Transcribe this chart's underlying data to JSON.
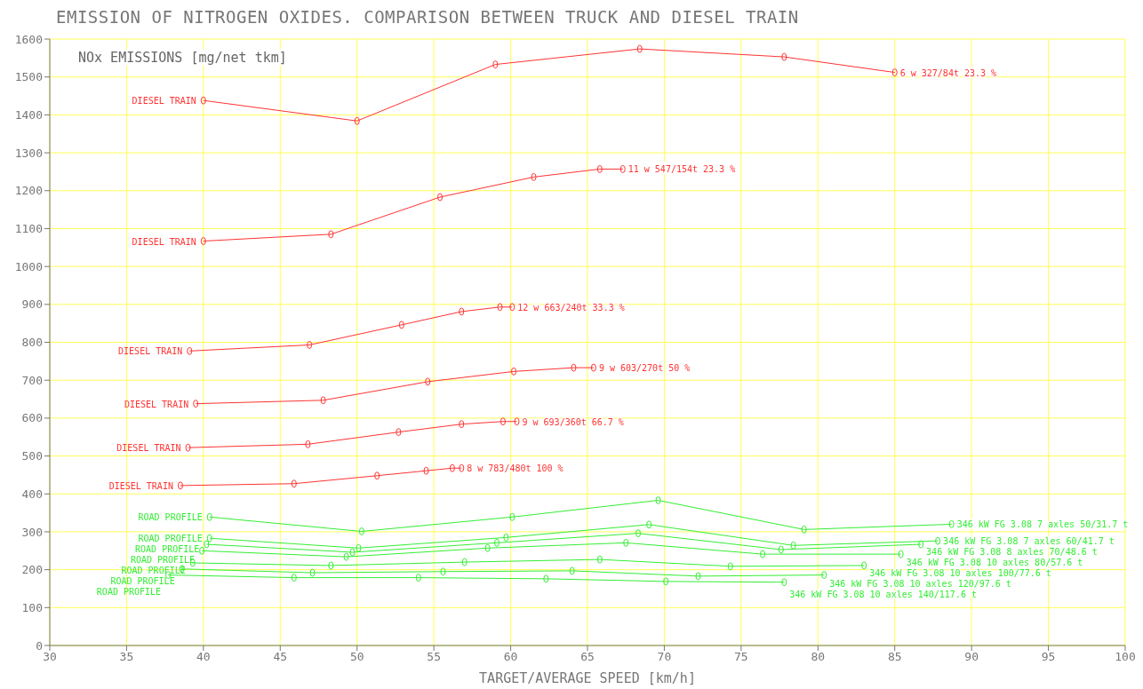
{
  "chart_data": {
    "type": "line",
    "title": "EMISSION OF NITROGEN OXIDES. COMPARISON BETWEEN TRUCK AND DIESEL TRAIN",
    "xlabel": "TARGET/AVERAGE SPEED [km/h]",
    "ylabel": "NOx EMISSIONS [mg/net tkm]",
    "xlim": [
      30,
      100
    ],
    "xticks": [
      30,
      35,
      40,
      45,
      50,
      55,
      60,
      65,
      70,
      75,
      80,
      85,
      90,
      95,
      100
    ],
    "ylim": [
      0,
      1600
    ],
    "yticks": [
      0,
      100,
      200,
      300,
      400,
      500,
      600,
      700,
      800,
      900,
      1000,
      1100,
      1200,
      1300,
      1400,
      1500,
      1600
    ],
    "grid": true,
    "marker": "circle",
    "line_style": "solid",
    "series": [
      {
        "name": "6 w 327/84t 23.3 %",
        "color": "#ff3333",
        "x": [
          40,
          50,
          59,
          68.4,
          77.8,
          85
        ],
        "values": [
          1438,
          1384,
          1533,
          1574,
          1553,
          1512
        ]
      },
      {
        "name": "11 w 547/154t 23.3 %",
        "color": "#ff3333",
        "x": [
          40,
          48.3,
          55.4,
          61.5,
          65.8,
          67.3
        ],
        "values": [
          1067,
          1085,
          1183,
          1236,
          1257,
          1257
        ]
      },
      {
        "name": "12 w 663/240t 33.3 %",
        "color": "#ff3333",
        "x": [
          39.1,
          46.9,
          52.9,
          56.8,
          59.3,
          60.1
        ],
        "values": [
          777,
          793,
          846,
          881,
          893,
          893
        ]
      },
      {
        "name": "9 w 603/270t 50 %",
        "color": "#ff3333",
        "x": [
          39.5,
          47.8,
          54.6,
          60.2,
          64.1,
          65.4
        ],
        "values": [
          638,
          647,
          696,
          723,
          733,
          733
        ]
      },
      {
        "name": "9 w 693/360t 66.7 %",
        "color": "#ff3333",
        "x": [
          39,
          46.8,
          52.7,
          56.8,
          59.5,
          60.4
        ],
        "values": [
          522,
          531,
          563,
          584,
          591,
          591
        ]
      },
      {
        "name": "8 w 783/480t 100 %",
        "color": "#ff3333",
        "x": [
          38.5,
          45.9,
          51.3,
          54.5,
          56.2,
          56.8
        ],
        "values": [
          422,
          427,
          448,
          461,
          468,
          468
        ]
      },
      {
        "name": "346 kW FG 3.08  7 axles 50/31.7 t",
        "color": "#33ee33",
        "x": [
          40.4,
          50.3,
          60.1,
          69.6,
          79.1,
          88.7
        ],
        "values": [
          339,
          301,
          339,
          383,
          306,
          320
        ]
      },
      {
        "name": "346 kW FG 3.08  7 axles 60/41.7 t",
        "color": "#33ee33",
        "x": [
          40.4,
          50.1,
          59.7,
          69,
          78.4,
          87.8
        ],
        "values": [
          283,
          257,
          285,
          319,
          264,
          276
        ]
      },
      {
        "name": "346 kW FG 3.08  8 axles 70/48.6 t",
        "color": "#33ee33",
        "x": [
          40.2,
          49.7,
          59.1,
          68.3,
          77.6,
          86.7
        ],
        "values": [
          267,
          246,
          271,
          296,
          253,
          267
        ]
      },
      {
        "name": "346 kW FG 3.08  10 axles 80/57.6 t",
        "color": "#33ee33",
        "x": [
          39.9,
          49.3,
          58.5,
          67.5,
          76.4,
          85.4
        ],
        "values": [
          250,
          234,
          257,
          271,
          241,
          241
        ]
      },
      {
        "name": "346 kW FG 3.08  10 axles 100/77.6 t",
        "color": "#33ee33",
        "x": [
          39.3,
          48.3,
          57,
          65.8,
          74.3,
          83
        ],
        "values": [
          218,
          211,
          220,
          227,
          209,
          211
        ]
      },
      {
        "name": "346 kW FG 3.08  10 axles 120/97.6 t",
        "color": "#33ee33",
        "x": [
          38.6,
          47.1,
          55.6,
          64,
          72.2,
          80.4
        ],
        "values": [
          202,
          192,
          195,
          197,
          183,
          186
        ]
      },
      {
        "name": "346 kW FG 3.08  10 axles 140/117.6 t",
        "color": "#33ee33",
        "x": [
          37.7,
          45.9,
          54,
          62.3,
          70.1,
          77.8
        ],
        "values": [
          186,
          179,
          179,
          176,
          169,
          167
        ]
      }
    ],
    "annotations": [
      {
        "text": "DIESEL TRAIN",
        "x": 40,
        "y": 1438
      },
      {
        "text": "DIESEL TRAIN",
        "x": 40,
        "y": 1067
      },
      {
        "text": "DIESEL TRAIN",
        "x": 39.1,
        "y": 777
      },
      {
        "text": "DIESEL TRAIN",
        "x": 39.5,
        "y": 638
      },
      {
        "text": "DIESEL TRAIN",
        "x": 39,
        "y": 522
      },
      {
        "text": "DIESEL TRAIN",
        "x": 38.5,
        "y": 422
      },
      {
        "text": "ROAD PROFILE",
        "x": 40.4,
        "y": 339
      },
      {
        "text": "ROAD PROFILE",
        "x": 40.4,
        "y": 283
      },
      {
        "text": "ROAD PROFILE",
        "x": 40.2,
        "y": 267
      },
      {
        "text": "ROAD PROFILE",
        "x": 39.9,
        "y": 250
      },
      {
        "text": "ROAD PROFILE",
        "x": 39.3,
        "y": 218
      },
      {
        "text": "ROAD PROFILE",
        "x": 38.6,
        "y": 202
      },
      {
        "text": "ROAD PROFILE",
        "x": 37.7,
        "y": 186
      }
    ]
  }
}
